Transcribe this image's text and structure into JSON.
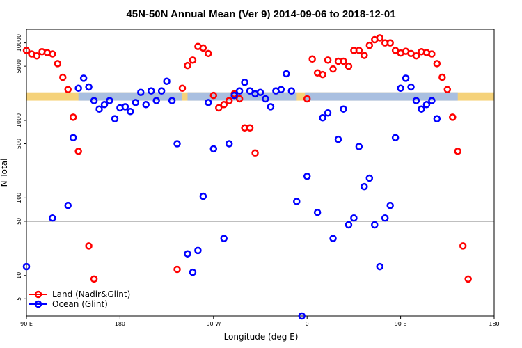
{
  "chart_data": {
    "type": "scatter",
    "title": "45N-50N Annual Mean (Ver 9)   2014-09-06 to 2018-12-01",
    "xlabel": "Longitude (deg E)",
    "ylabel": "N Total",
    "y_scale": "log",
    "ylim": [
      3,
      15000
    ],
    "x_ticks": [
      "90 E",
      "180",
      "90 W",
      "0",
      "90 E",
      "180"
    ],
    "y_ticks": [
      {
        "value": 5,
        "label": "5"
      },
      {
        "value": 10,
        "label": "10"
      },
      {
        "value": 50,
        "label": "50"
      },
      {
        "value": 100,
        "label": "100"
      },
      {
        "value": 500,
        "label": "500"
      },
      {
        "value": 1000,
        "label": "1000"
      },
      {
        "value": 5000,
        "label": "5000"
      },
      {
        "value": 10000,
        "label": "10000"
      }
    ],
    "reference_line": 50,
    "band": {
      "low": 1800,
      "high": 2300
    },
    "series": [
      {
        "name": "Land (Nadir&Glint)",
        "color": "#ff0000",
        "points": [
          [
            90,
            8000
          ],
          [
            95,
            7200
          ],
          [
            100,
            6800
          ],
          [
            105,
            7700
          ],
          [
            110,
            7500
          ],
          [
            115,
            7200
          ],
          [
            120,
            5400
          ],
          [
            125,
            3600
          ],
          [
            130,
            2500
          ],
          [
            135,
            1100
          ],
          [
            140,
            400
          ],
          [
            150,
            24
          ],
          [
            155,
            9
          ],
          [
            235,
            12
          ],
          [
            240,
            2600
          ],
          [
            245,
            5100
          ],
          [
            250,
            6000
          ],
          [
            255,
            9000
          ],
          [
            260,
            8600
          ],
          [
            265,
            7300
          ],
          [
            270,
            2100
          ],
          [
            275,
            1450
          ],
          [
            280,
            1600
          ],
          [
            285,
            1800
          ],
          [
            290,
            2200
          ],
          [
            295,
            1900
          ],
          [
            300,
            800
          ],
          [
            305,
            800
          ],
          [
            310,
            380
          ],
          [
            360,
            1900
          ],
          [
            365,
            6200
          ],
          [
            370,
            4100
          ],
          [
            375,
            3900
          ],
          [
            380,
            6000
          ],
          [
            385,
            4600
          ],
          [
            390,
            5800
          ],
          [
            395,
            5800
          ],
          [
            400,
            5000
          ],
          [
            405,
            8000
          ],
          [
            410,
            8000
          ],
          [
            415,
            6900
          ],
          [
            420,
            9300
          ],
          [
            425,
            11000
          ],
          [
            430,
            11600
          ],
          [
            435,
            10000
          ],
          [
            440,
            10000
          ],
          [
            445,
            8000
          ],
          [
            450,
            7400
          ],
          [
            455,
            7800
          ],
          [
            460,
            7300
          ],
          [
            465,
            6800
          ],
          [
            470,
            7700
          ],
          [
            475,
            7500
          ],
          [
            480,
            7200
          ],
          [
            485,
            5400
          ],
          [
            490,
            3600
          ],
          [
            495,
            2500
          ],
          [
            500,
            1100
          ],
          [
            505,
            400
          ],
          [
            510,
            24
          ],
          [
            515,
            9
          ]
        ]
      },
      {
        "name": "Ocean (Glint)",
        "color": "#0000ff",
        "points": [
          [
            90,
            13
          ],
          [
            115,
            55
          ],
          [
            130,
            80
          ],
          [
            135,
            600
          ],
          [
            140,
            2600
          ],
          [
            145,
            3500
          ],
          [
            150,
            2700
          ],
          [
            155,
            1800
          ],
          [
            160,
            1400
          ],
          [
            165,
            1600
          ],
          [
            170,
            1800
          ],
          [
            175,
            1050
          ],
          [
            180,
            1450
          ],
          [
            185,
            1500
          ],
          [
            190,
            1300
          ],
          [
            195,
            1700
          ],
          [
            200,
            2300
          ],
          [
            205,
            1600
          ],
          [
            210,
            2400
          ],
          [
            215,
            1800
          ],
          [
            220,
            2400
          ],
          [
            225,
            3200
          ],
          [
            230,
            1800
          ],
          [
            235,
            500
          ],
          [
            245,
            19
          ],
          [
            250,
            11
          ],
          [
            255,
            21
          ],
          [
            260,
            105
          ],
          [
            265,
            1700
          ],
          [
            270,
            430
          ],
          [
            280,
            30
          ],
          [
            285,
            500
          ],
          [
            290,
            2100
          ],
          [
            295,
            2400
          ],
          [
            300,
            3100
          ],
          [
            305,
            2400
          ],
          [
            310,
            2200
          ],
          [
            315,
            2300
          ],
          [
            320,
            1900
          ],
          [
            325,
            1500
          ],
          [
            330,
            2400
          ],
          [
            335,
            2500
          ],
          [
            340,
            4000
          ],
          [
            345,
            2400
          ],
          [
            350,
            90
          ],
          [
            355,
            3
          ],
          [
            360,
            190
          ],
          [
            370,
            65
          ],
          [
            375,
            1080
          ],
          [
            380,
            1250
          ],
          [
            385,
            30
          ],
          [
            390,
            570
          ],
          [
            395,
            1400
          ],
          [
            400,
            45
          ],
          [
            405,
            55
          ],
          [
            410,
            460
          ],
          [
            415,
            140
          ],
          [
            420,
            180
          ],
          [
            425,
            45
          ],
          [
            430,
            13
          ],
          [
            435,
            55
          ],
          [
            440,
            80
          ],
          [
            445,
            600
          ],
          [
            450,
            2600
          ],
          [
            455,
            3500
          ],
          [
            460,
            2700
          ],
          [
            465,
            1800
          ],
          [
            470,
            1400
          ],
          [
            475,
            1600
          ],
          [
            480,
            1800
          ],
          [
            485,
            1050
          ]
        ]
      }
    ],
    "legend": {
      "position": "bottom-left",
      "entries": [
        "Land (Nadir&Glint)",
        "Ocean (Glint)"
      ]
    }
  },
  "colors": {
    "band_land": "#f5d27a",
    "band_ocean": "#a9bfe0",
    "land": "#ff0000",
    "ocean": "#0000ff"
  }
}
